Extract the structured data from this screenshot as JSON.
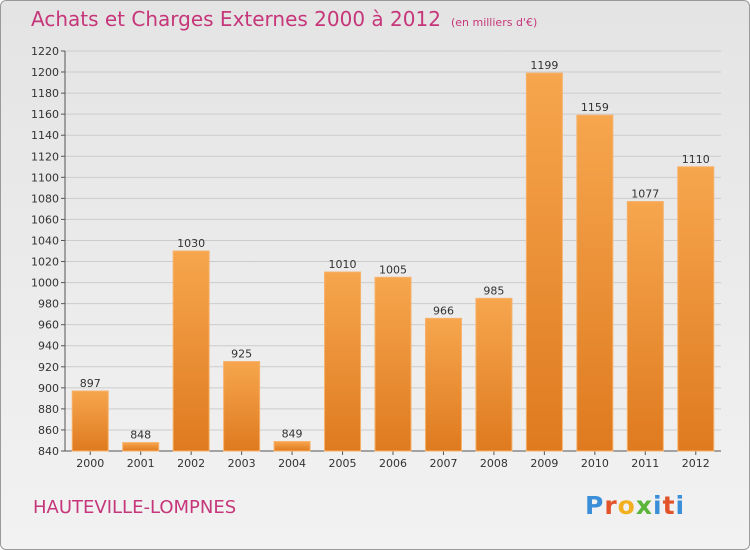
{
  "header": {
    "title": "Achats et Charges Externes 2000 à 2012",
    "subtitle": "(en milliers d'€)"
  },
  "footer": {
    "place": "HAUTEVILLE-LOMPNES",
    "brand": [
      "P",
      "r",
      "o",
      "x",
      "i",
      "t",
      "i"
    ]
  },
  "colors": {
    "title": "#c6367a",
    "bar_light": "#f6a64e",
    "bar_dark": "#e07b22",
    "grid": "#cccccc"
  },
  "chart_data": {
    "type": "bar",
    "categories": [
      "2000",
      "2001",
      "2002",
      "2003",
      "2004",
      "2005",
      "2006",
      "2007",
      "2008",
      "2009",
      "2010",
      "2011",
      "2012"
    ],
    "values": [
      897,
      848,
      1030,
      925,
      849,
      1010,
      1005,
      966,
      985,
      1199,
      1159,
      1077,
      1110
    ],
    "ylim": [
      840,
      1220
    ],
    "yticks": [
      840,
      860,
      880,
      900,
      920,
      940,
      960,
      980,
      1000,
      1020,
      1040,
      1060,
      1080,
      1100,
      1120,
      1140,
      1160,
      1180,
      1200,
      1220
    ],
    "grid": true,
    "data_labels": true
  }
}
